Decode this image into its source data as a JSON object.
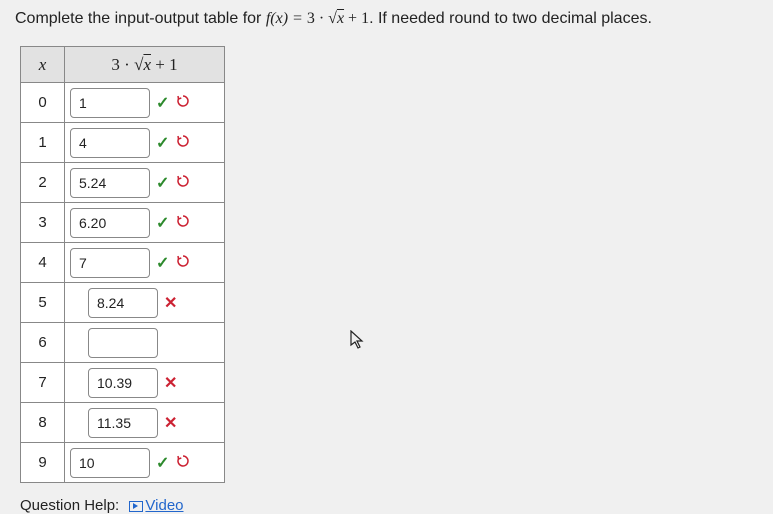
{
  "prompt": {
    "prefix": "Complete the input-output table for ",
    "fn_lhs": "f(x) = ",
    "fn_coef": "3 · ",
    "fn_radicand": "x",
    "fn_suffix": " + 1",
    "postfix": ". If needed round to two decimal places."
  },
  "header": {
    "x": "x",
    "f_coef": "3 · ",
    "f_radicand": "x",
    "f_suffix": " + 1"
  },
  "rows": [
    {
      "x": "0",
      "value": "1",
      "status": "correct",
      "show_retry": true
    },
    {
      "x": "1",
      "value": "4",
      "status": "correct",
      "show_retry": true
    },
    {
      "x": "2",
      "value": "5.24",
      "status": "correct",
      "show_retry": true
    },
    {
      "x": "3",
      "value": "6.20",
      "status": "correct",
      "show_retry": true
    },
    {
      "x": "4",
      "value": "7",
      "status": "correct",
      "show_retry": true
    },
    {
      "x": "5",
      "value": "8.24",
      "status": "wrong",
      "show_retry": false
    },
    {
      "x": "6",
      "value": "",
      "status": "empty",
      "show_retry": false
    },
    {
      "x": "7",
      "value": "10.39",
      "status": "wrong",
      "show_retry": false
    },
    {
      "x": "8",
      "value": "11.35",
      "status": "wrong",
      "show_retry": false
    },
    {
      "x": "9",
      "value": "10",
      "status": "correct",
      "show_retry": true
    }
  ],
  "help": {
    "label": "Question Help:",
    "video": "Video"
  },
  "icons": {
    "check": "✓",
    "cross": "✕",
    "retry": "⚙",
    "cursor": "↖"
  },
  "colors": {
    "background": "#f0f0f0",
    "text": "#222222",
    "border": "#888888",
    "header_bg": "#e2e2e2",
    "correct": "#2d8a2d",
    "wrong": "#cc2233",
    "link": "#2266cc"
  }
}
